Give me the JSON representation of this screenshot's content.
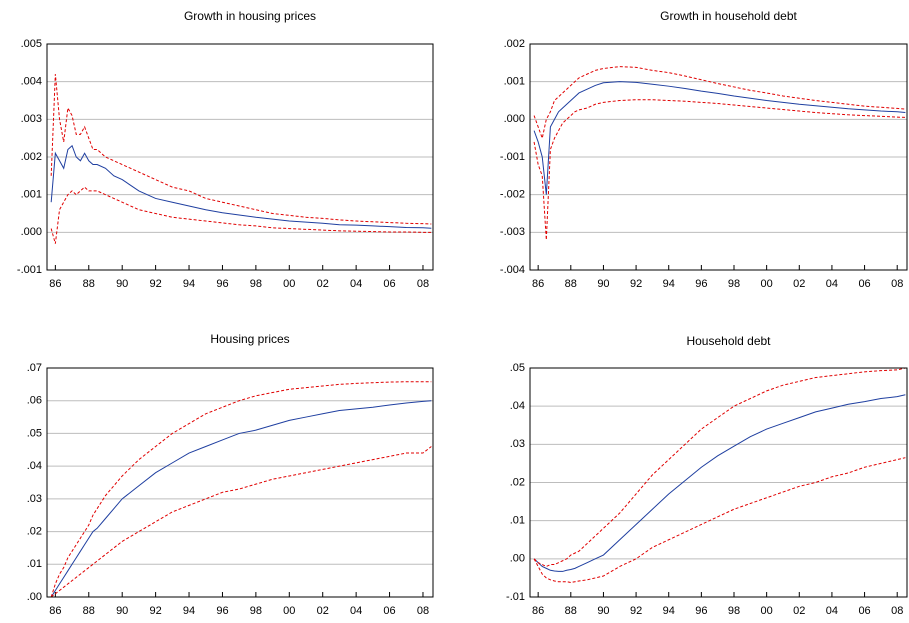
{
  "chart_data": [
    {
      "type": "line",
      "title": "Growth in housing prices",
      "x": [
        85.75,
        86,
        86.25,
        86.5,
        86.75,
        87,
        87.25,
        87.5,
        87.75,
        88,
        88.25,
        88.5,
        89,
        89.5,
        90,
        91,
        92,
        93,
        94,
        95,
        96,
        97,
        98,
        99,
        100,
        101,
        102,
        103,
        104,
        105,
        106,
        107,
        108,
        108.5
      ],
      "xlim": [
        85.5,
        108.6
      ],
      "xticks": [
        86,
        88,
        90,
        92,
        94,
        96,
        98,
        {
          "value": 100,
          "label": "00"
        },
        {
          "value": 102,
          "label": "02"
        },
        {
          "value": 104,
          "label": "04"
        },
        {
          "value": 106,
          "label": "06"
        },
        {
          "value": 108,
          "label": "08"
        }
      ],
      "ylim": [
        -0.001,
        0.005
      ],
      "yticks": [
        {
          "value": 0.005,
          "label": ".005"
        },
        {
          "value": 0.004,
          "label": ".004"
        },
        {
          "value": 0.003,
          "label": ".003"
        },
        {
          "value": 0.002,
          "label": ".002"
        },
        {
          "value": 0.001,
          "label": ".001"
        },
        {
          "value": 0,
          "label": ".000"
        },
        {
          "value": -0.001,
          "label": "-.001"
        }
      ],
      "grid": true,
      "series": [
        {
          "color": "#1f3fa0",
          "line_style": "solid",
          "values": [
            0.0008,
            0.0021,
            0.0019,
            0.0017,
            0.0022,
            0.0023,
            0.002,
            0.0019,
            0.0021,
            0.0019,
            0.0018,
            0.0018,
            0.0017,
            0.0015,
            0.0014,
            0.0011,
            0.0009,
            0.0008,
            0.0007,
            0.0006,
            0.00052,
            0.00046,
            0.0004,
            0.00035,
            0.0003,
            0.00027,
            0.00024,
            0.0002,
            0.00019,
            0.00017,
            0.00015,
            0.00013,
            0.00012,
            0.00011
          ]
        },
        {
          "color": "#e00000",
          "line_style": "dashed",
          "values": [
            0.0015,
            0.0042,
            0.003,
            0.0024,
            0.0033,
            0.0031,
            0.0026,
            0.0026,
            0.0028,
            0.0025,
            0.0022,
            0.0022,
            0.002,
            0.0019,
            0.0018,
            0.0016,
            0.0014,
            0.0012,
            0.0011,
            0.0009,
            0.0008,
            0.0007,
            0.0006,
            0.0005,
            0.00045,
            0.0004,
            0.00037,
            0.00033,
            0.0003,
            0.00028,
            0.00026,
            0.00024,
            0.00023,
            0.00022
          ]
        },
        {
          "color": "#e00000",
          "line_style": "dashed",
          "values": [
            0.0001,
            -0.0003,
            0.0006,
            0.0008,
            0.001,
            0.0011,
            0.001,
            0.0011,
            0.0012,
            0.0011,
            0.0011,
            0.0011,
            0.001,
            0.0009,
            0.0008,
            0.0006,
            0.0005,
            0.0004,
            0.00035,
            0.0003,
            0.00025,
            0.0002,
            0.00017,
            0.00012,
            0.0001,
            8e-05,
            6e-05,
            4e-05,
            3e-05,
            2e-05,
            1e-05,
            1e-05,
            0,
            0
          ]
        }
      ]
    },
    {
      "type": "line",
      "title": "Growth in household debt",
      "x": [
        85.75,
        86,
        86.25,
        86.5,
        86.75,
        87,
        87.25,
        87.5,
        87.75,
        88,
        88.25,
        88.5,
        89,
        89.5,
        90,
        91,
        92,
        93,
        94,
        95,
        96,
        97,
        98,
        99,
        100,
        101,
        102,
        103,
        104,
        105,
        106,
        107,
        108,
        108.5
      ],
      "xlim": [
        85.5,
        108.6
      ],
      "xticks": [
        86,
        88,
        90,
        92,
        94,
        96,
        98,
        {
          "value": 100,
          "label": "00"
        },
        {
          "value": 102,
          "label": "02"
        },
        {
          "value": 104,
          "label": "04"
        },
        {
          "value": 106,
          "label": "06"
        },
        {
          "value": 108,
          "label": "08"
        }
      ],
      "ylim": [
        -0.004,
        0.002
      ],
      "yticks": [
        {
          "value": 0.002,
          "label": ".002"
        },
        {
          "value": 0.001,
          "label": ".001"
        },
        {
          "value": 0,
          "label": ".000"
        },
        {
          "value": -0.001,
          "label": "-.001"
        },
        {
          "value": -0.002,
          "label": "-.002"
        },
        {
          "value": -0.003,
          "label": "-.003"
        },
        {
          "value": -0.004,
          "label": "-.004"
        }
      ],
      "grid": true,
      "series": [
        {
          "color": "#1f3fa0",
          "line_style": "solid",
          "values": [
            -0.0003,
            -0.0006,
            -0.001,
            -0.002,
            -0.0002,
            0,
            0.0002,
            0.0003,
            0.0004,
            0.0005,
            0.0006,
            0.0007,
            0.0008,
            0.0009,
            0.00097,
            0.001,
            0.00098,
            0.00093,
            0.00088,
            0.00082,
            0.00075,
            0.00069,
            0.00062,
            0.00056,
            0.0005,
            0.00045,
            0.0004,
            0.00036,
            0.00032,
            0.00028,
            0.00025,
            0.00022,
            0.0002,
            0.00018
          ]
        },
        {
          "color": "#e00000",
          "line_style": "dashed",
          "values": [
            0.0001,
            -0.0002,
            -0.0005,
            0,
            0.0002,
            0.0005,
            0.0006,
            0.0007,
            0.0008,
            0.0009,
            0.001,
            0.0011,
            0.0012,
            0.0013,
            0.00135,
            0.0014,
            0.00138,
            0.0013,
            0.00124,
            0.00115,
            0.00105,
            0.00095,
            0.00086,
            0.00077,
            0.0007,
            0.00062,
            0.00056,
            0.0005,
            0.00045,
            0.0004,
            0.00035,
            0.00032,
            0.00029,
            0.00027
          ]
        },
        {
          "color": "#e00000",
          "line_style": "dashed",
          "values": [
            -0.0006,
            -0.0012,
            -0.0015,
            -0.0032,
            -0.0008,
            -0.0005,
            -0.0003,
            -0.0001,
            0,
            0.0001,
            0.0002,
            0.00025,
            0.0003,
            0.0004,
            0.00045,
            0.0005,
            0.00052,
            0.00052,
            0.0005,
            0.00048,
            0.00045,
            0.00042,
            0.00038,
            0.00034,
            0.0003,
            0.00026,
            0.00022,
            0.00018,
            0.00015,
            0.00012,
            0.0001,
            8e-05,
            6e-05,
            5e-05
          ]
        }
      ]
    },
    {
      "type": "line",
      "title": "Housing prices",
      "x": [
        85.75,
        86,
        86.25,
        86.5,
        86.75,
        87,
        87.25,
        87.5,
        87.75,
        88,
        88.25,
        88.5,
        89,
        89.5,
        90,
        91,
        92,
        93,
        94,
        95,
        96,
        97,
        98,
        99,
        100,
        101,
        102,
        103,
        104,
        105,
        106,
        107,
        108,
        108.5
      ],
      "xlim": [
        85.5,
        108.6
      ],
      "xticks": [
        86,
        88,
        90,
        92,
        94,
        96,
        98,
        {
          "value": 100,
          "label": "00"
        },
        {
          "value": 102,
          "label": "02"
        },
        {
          "value": 104,
          "label": "04"
        },
        {
          "value": 106,
          "label": "06"
        },
        {
          "value": 108,
          "label": "08"
        }
      ],
      "ylim": [
        0,
        0.07
      ],
      "yticks": [
        {
          "value": 0.07,
          "label": ".07"
        },
        {
          "value": 0.06,
          "label": ".06"
        },
        {
          "value": 0.05,
          "label": ".05"
        },
        {
          "value": 0.04,
          "label": ".04"
        },
        {
          "value": 0.03,
          "label": ".03"
        },
        {
          "value": 0.02,
          "label": ".02"
        },
        {
          "value": 0.01,
          "label": ".01"
        },
        {
          "value": 0,
          "label": ".00"
        }
      ],
      "grid": true,
      "series": [
        {
          "color": "#1f3fa0",
          "line_style": "solid",
          "values": [
            0,
            0.002,
            0.004,
            0.006,
            0.008,
            0.01,
            0.012,
            0.014,
            0.016,
            0.018,
            0.02,
            0.021,
            0.024,
            0.027,
            0.03,
            0.034,
            0.038,
            0.041,
            0.044,
            0.046,
            0.048,
            0.05,
            0.051,
            0.0525,
            0.054,
            0.055,
            0.056,
            0.057,
            0.0575,
            0.058,
            0.0587,
            0.0593,
            0.0598,
            0.06
          ]
        },
        {
          "color": "#e00000",
          "line_style": "dashed",
          "values": [
            0,
            0.004,
            0.007,
            0.009,
            0.012,
            0.014,
            0.016,
            0.018,
            0.02,
            0.022,
            0.025,
            0.027,
            0.031,
            0.034,
            0.037,
            0.042,
            0.046,
            0.05,
            0.053,
            0.056,
            0.058,
            0.06,
            0.0615,
            0.0625,
            0.0635,
            0.064,
            0.0645,
            0.065,
            0.0653,
            0.0655,
            0.0657,
            0.0658,
            0.0658,
            0.0658
          ]
        },
        {
          "color": "#e00000",
          "line_style": "dashed",
          "values": [
            0,
            0.001,
            0.002,
            0.003,
            0.004,
            0.005,
            0.006,
            0.007,
            0.008,
            0.009,
            0.01,
            0.011,
            0.013,
            0.015,
            0.017,
            0.02,
            0.023,
            0.026,
            0.028,
            0.03,
            0.032,
            0.033,
            0.0345,
            0.036,
            0.037,
            0.038,
            0.039,
            0.04,
            0.041,
            0.042,
            0.043,
            0.044,
            0.044,
            0.046
          ]
        }
      ]
    },
    {
      "type": "line",
      "title": "Household debt",
      "x": [
        85.75,
        86,
        86.25,
        86.5,
        86.75,
        87,
        87.25,
        87.5,
        87.75,
        88,
        88.25,
        88.5,
        89,
        89.5,
        90,
        91,
        92,
        93,
        94,
        95,
        96,
        97,
        98,
        99,
        100,
        101,
        102,
        103,
        104,
        105,
        106,
        107,
        108,
        108.5
      ],
      "xlim": [
        85.5,
        108.6
      ],
      "xticks": [
        86,
        88,
        90,
        92,
        94,
        96,
        98,
        {
          "value": 100,
          "label": "00"
        },
        {
          "value": 102,
          "label": "02"
        },
        {
          "value": 104,
          "label": "04"
        },
        {
          "value": 106,
          "label": "06"
        },
        {
          "value": 108,
          "label": "08"
        }
      ],
      "ylim": [
        -0.01,
        0.05
      ],
      "yticks": [
        {
          "value": 0.05,
          "label": ".05"
        },
        {
          "value": 0.04,
          "label": ".04"
        },
        {
          "value": 0.03,
          "label": ".03"
        },
        {
          "value": 0.02,
          "label": ".02"
        },
        {
          "value": 0.01,
          "label": ".01"
        },
        {
          "value": 0,
          "label": ".00"
        },
        {
          "value": -0.01,
          "label": "-.01"
        }
      ],
      "grid": true,
      "series": [
        {
          "color": "#1f3fa0",
          "line_style": "solid",
          "values": [
            0,
            -0.001,
            -0.002,
            -0.0025,
            -0.003,
            -0.0032,
            -0.0033,
            -0.0033,
            -0.003,
            -0.0028,
            -0.0025,
            -0.002,
            -0.001,
            0,
            0.001,
            0.005,
            0.009,
            0.013,
            0.017,
            0.0205,
            0.024,
            0.027,
            0.0295,
            0.032,
            0.034,
            0.0355,
            0.037,
            0.0385,
            0.0395,
            0.0405,
            0.0412,
            0.042,
            0.0425,
            0.043
          ]
        },
        {
          "color": "#e00000",
          "line_style": "dashed",
          "values": [
            0,
            -0.001,
            -0.0015,
            -0.002,
            -0.0015,
            -0.0015,
            -0.001,
            -0.0005,
            0,
            0.001,
            0.0015,
            0.002,
            0.004,
            0.006,
            0.008,
            0.012,
            0.017,
            0.022,
            0.026,
            0.03,
            0.034,
            0.037,
            0.04,
            0.042,
            0.044,
            0.0455,
            0.0465,
            0.0475,
            0.048,
            0.0485,
            0.049,
            0.0493,
            0.0495,
            0.05
          ]
        },
        {
          "color": "#e00000",
          "line_style": "dashed",
          "values": [
            0,
            -0.002,
            -0.004,
            -0.005,
            -0.0055,
            -0.0058,
            -0.006,
            -0.006,
            -0.006,
            -0.0062,
            -0.006,
            -0.0058,
            -0.0055,
            -0.005,
            -0.0045,
            -0.002,
            0,
            0.003,
            0.005,
            0.007,
            0.009,
            0.011,
            0.013,
            0.0145,
            0.016,
            0.0175,
            0.019,
            0.02,
            0.0215,
            0.0225,
            0.024,
            0.025,
            0.026,
            0.0265
          ]
        }
      ]
    }
  ]
}
